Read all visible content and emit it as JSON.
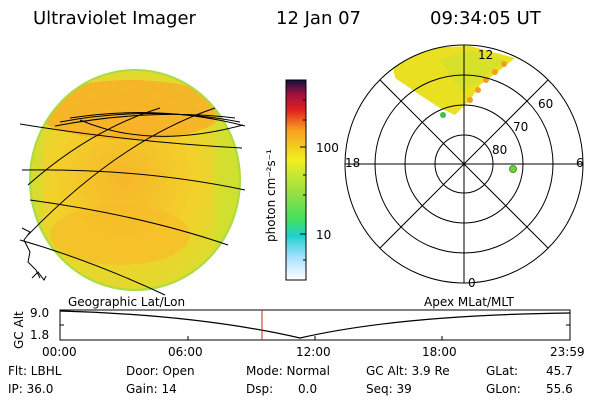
{
  "header": {
    "title": "Ultraviolet Imager",
    "date": "12 Jan 07",
    "time": "09:34:05 UT"
  },
  "colorbar": {
    "unit_label": "photon cm⁻²s⁻¹",
    "ticks": [
      "100",
      "10"
    ]
  },
  "polar_plot": {
    "mlt_labels": [
      "12",
      "18",
      "6",
      "0"
    ],
    "lat_labels": [
      "60",
      "70",
      "80"
    ]
  },
  "timeline": {
    "left_title": "Geographic Lat/Lon",
    "right_title": "Apex MLat/MLT",
    "y_axis_label": "GC Alt",
    "y_ticks": [
      "9.0",
      "1.8"
    ],
    "x_ticks": [
      "00:00",
      "06:00",
      "12:00",
      "18:00",
      "23:59"
    ]
  },
  "info": {
    "flt": "Flt: LBHL",
    "ip": "IP: 36.0",
    "door": "Door: Open",
    "gain": "Gain: 14",
    "mode": "Mode: Normal",
    "dsp_label": "Dsp:",
    "dsp_value": "0.0",
    "gc_alt": "GC Alt: 3.9 Re",
    "seq": "Seq: 39",
    "glat_label": "GLat:",
    "glat_value": "45.7",
    "glon_label": "GLon:",
    "glon_value": "55.6"
  },
  "colors": {
    "disk_fill": "#f2d020",
    "disk_bright": "#f8b020",
    "disk_green": "#cfe030",
    "cursor_line": "#cc2222"
  }
}
